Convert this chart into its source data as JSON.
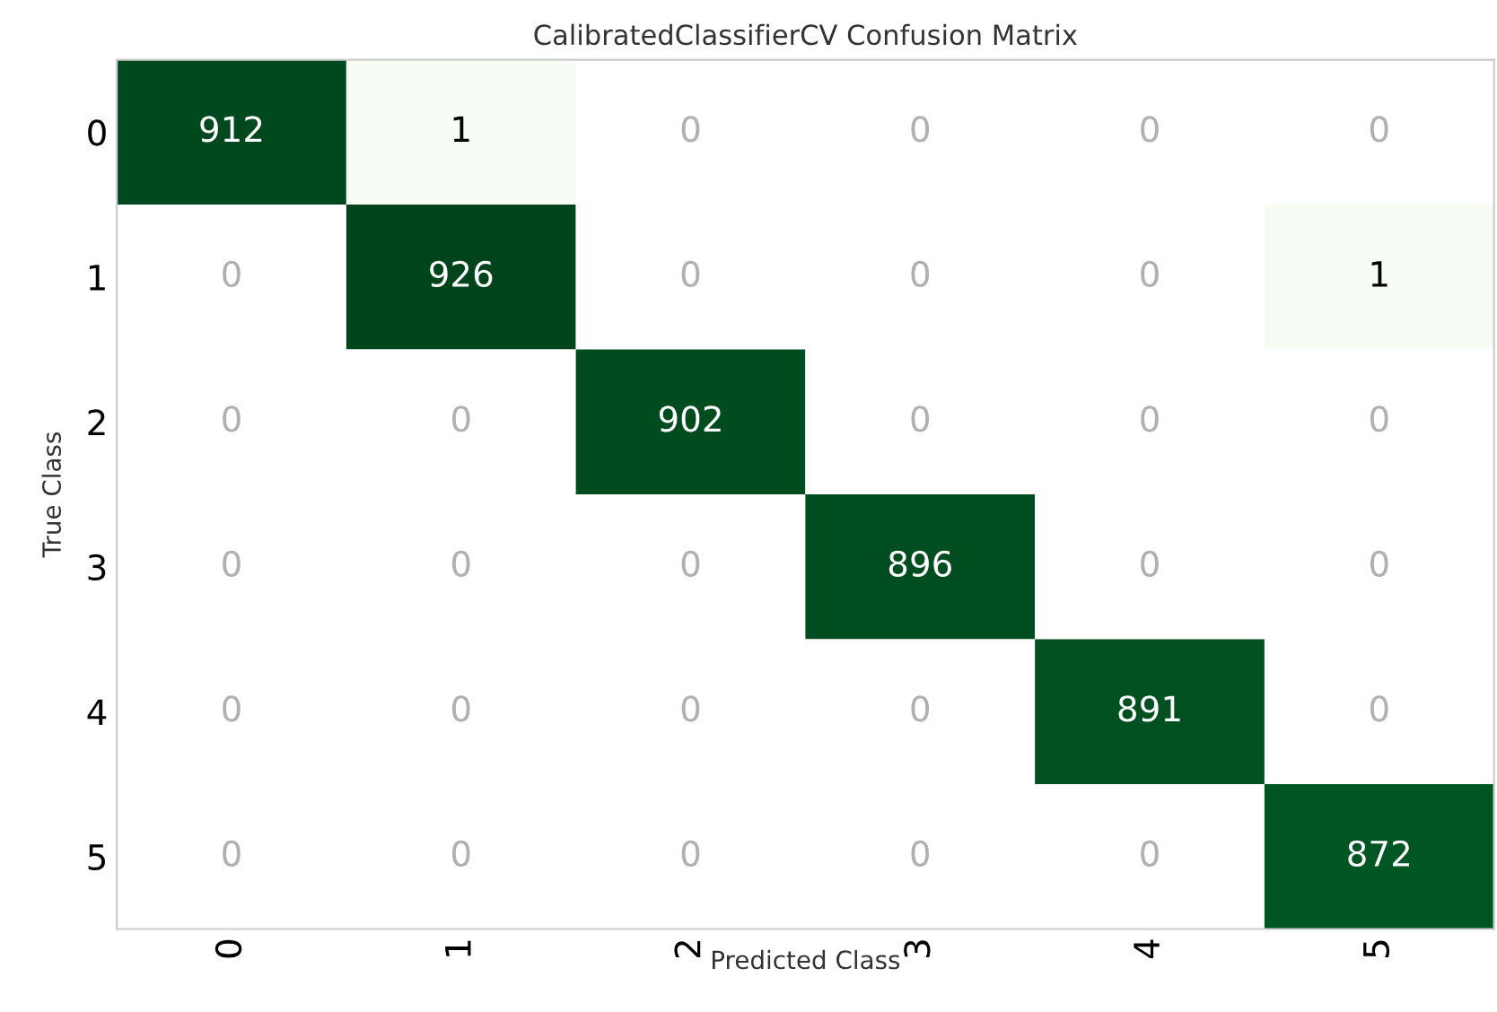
{
  "chart_data": {
    "type": "heatmap",
    "title": "CalibratedClassifierCV Confusion Matrix",
    "xlabel": "Predicted Class",
    "ylabel": "True Class",
    "categories": [
      "0",
      "1",
      "2",
      "3",
      "4",
      "5"
    ],
    "y_categories": [
      "0",
      "1",
      "2",
      "3",
      "4",
      "5"
    ],
    "cells": [
      [
        912,
        1,
        0,
        0,
        0,
        0
      ],
      [
        0,
        926,
        0,
        0,
        0,
        1
      ],
      [
        0,
        0,
        902,
        0,
        0,
        0
      ],
      [
        0,
        0,
        0,
        896,
        0,
        0
      ],
      [
        0,
        0,
        0,
        0,
        891,
        0
      ],
      [
        0,
        0,
        0,
        0,
        0,
        872
      ]
    ],
    "grid": false,
    "data_labels": true
  }
}
